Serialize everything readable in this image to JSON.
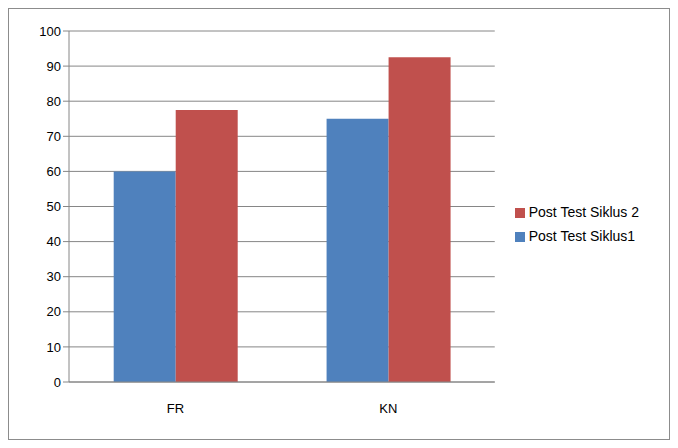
{
  "chart_data": {
    "type": "bar",
    "categories": [
      "FR",
      "KN"
    ],
    "series": [
      {
        "name": "Post Test Siklus1",
        "color": "#4f81bd",
        "values": [
          60,
          75
        ]
      },
      {
        "name": "Post Test Siklus 2",
        "color": "#c0504d",
        "values": [
          77.5,
          92.5
        ]
      }
    ],
    "ylim": [
      0,
      100
    ],
    "yticks": [
      0,
      10,
      20,
      30,
      40,
      50,
      60,
      70,
      80,
      90,
      100
    ],
    "grid": true,
    "legend": "right"
  }
}
